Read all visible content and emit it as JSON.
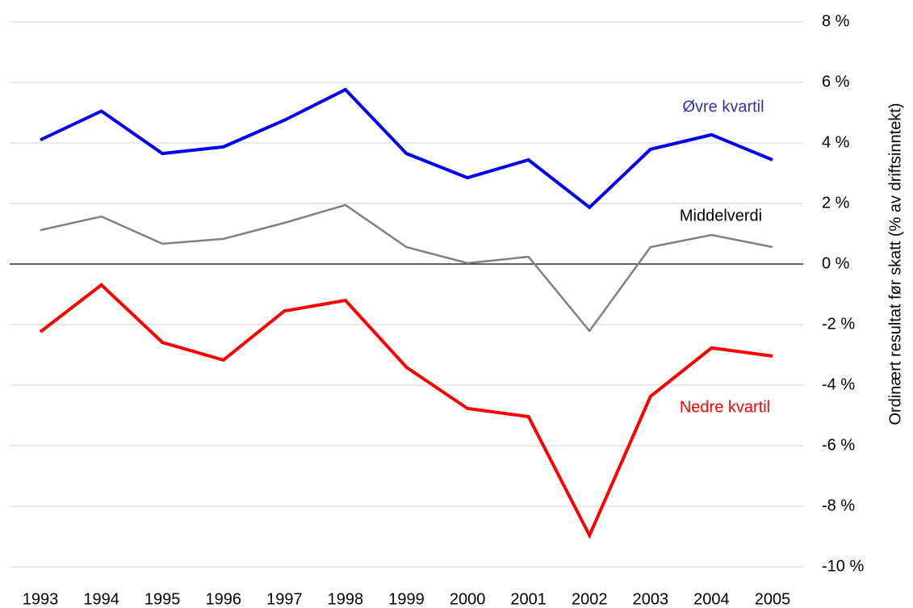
{
  "chart_data": {
    "type": "line",
    "y_axis_label": "Ordinært resultat før skatt (% av driftsinntekt)",
    "categories": [
      "1993",
      "1994",
      "1995",
      "1996",
      "1997",
      "1998",
      "1999",
      "2000",
      "2001",
      "2002",
      "2003",
      "2004",
      "2005"
    ],
    "series": [
      {
        "name": "Øvre kvartil",
        "color": "#0000ee",
        "values": [
          4.1,
          5.05,
          3.65,
          3.87,
          4.75,
          5.76,
          3.65,
          2.85,
          3.44,
          1.87,
          3.79,
          4.27,
          3.44
        ]
      },
      {
        "name": "Middelverdi",
        "color": "#808080",
        "values": [
          1.12,
          1.57,
          0.67,
          0.83,
          1.36,
          1.95,
          0.56,
          0.03,
          0.24,
          -2.21,
          0.56,
          0.96,
          0.56
        ]
      },
      {
        "name": "Nedre kvartil",
        "color": "#ff0000",
        "values": [
          -2.24,
          -0.69,
          -2.59,
          -3.17,
          -1.55,
          -1.2,
          -3.41,
          -4.77,
          -5.04,
          -8.96,
          -4.37,
          -2.77,
          -3.04
        ]
      }
    ],
    "ylim": [
      -10,
      8
    ],
    "yticks": [
      {
        "value": 8,
        "label": "8 %"
      },
      {
        "value": 6,
        "label": "6 %"
      },
      {
        "value": 4,
        "label": "4 %"
      },
      {
        "value": 2,
        "label": "2 %"
      },
      {
        "value": 0,
        "label": "0 %"
      },
      {
        "value": -2,
        "label": "-2 %"
      },
      {
        "value": -4,
        "label": "-4 %"
      },
      {
        "value": -6,
        "label": "-6 %"
      },
      {
        "value": -8,
        "label": "-8 %"
      },
      {
        "value": -10,
        "label": "-10 %"
      }
    ],
    "grid": true
  }
}
